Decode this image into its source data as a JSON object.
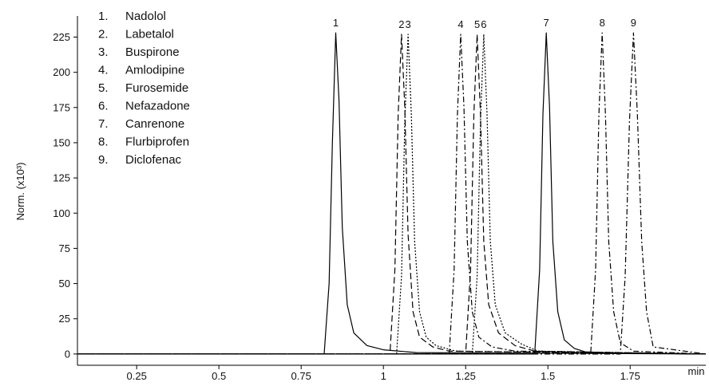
{
  "chart_data": {
    "type": "line",
    "title": "",
    "xlabel": "min",
    "ylabel": "Norm. (x10³)",
    "xlim": [
      0.07,
      1.98
    ],
    "ylim": [
      -8,
      240
    ],
    "x_ticks": [
      0.25,
      0.5,
      0.75,
      1,
      1.25,
      1.5,
      1.75
    ],
    "x_tick_labels": [
      "0.25",
      "0.5",
      "0.75",
      "1",
      "1.25",
      "1.5",
      "1.75"
    ],
    "y_ticks": [
      0,
      25,
      50,
      75,
      100,
      125,
      150,
      175,
      200,
      225
    ],
    "y_tick_labels": [
      "0",
      "25",
      "50",
      "75",
      "100",
      "125",
      "150",
      "175",
      "200",
      "225"
    ],
    "grid": false,
    "legend_position": "top-left",
    "legend": [
      {
        "num": "1.",
        "name": "Nadolol"
      },
      {
        "num": "2.",
        "name": "Labetalol"
      },
      {
        "num": "3.",
        "name": "Buspirone"
      },
      {
        "num": "4.",
        "name": "Amlodipine"
      },
      {
        "num": "5.",
        "name": "Furosemide"
      },
      {
        "num": "6.",
        "name": "Nefazadone"
      },
      {
        "num": "7.",
        "name": "Canrenone"
      },
      {
        "num": "8.",
        "name": "Flurbiprofen"
      },
      {
        "num": "9.",
        "name": "Diclofenac"
      }
    ],
    "series": [
      {
        "label": "1",
        "style": "solid",
        "x": [
          0.07,
          0.82,
          0.835,
          0.845,
          0.855,
          0.865,
          0.875,
          0.89,
          0.91,
          0.95,
          1.0,
          1.1,
          1.98
        ],
        "y": [
          0,
          0,
          50,
          150,
          228,
          180,
          90,
          35,
          15,
          6,
          3,
          1,
          0
        ]
      },
      {
        "label": "2",
        "style": "longdash",
        "x": [
          0.07,
          1.02,
          1.035,
          1.045,
          1.055,
          1.065,
          1.075,
          1.09,
          1.11,
          1.15,
          1.2,
          1.98
        ],
        "y": [
          0,
          0,
          60,
          170,
          227,
          175,
          85,
          30,
          12,
          5,
          2,
          0
        ]
      },
      {
        "label": "3",
        "style": "dotted",
        "x": [
          0.07,
          1.04,
          1.055,
          1.065,
          1.075,
          1.085,
          1.095,
          1.11,
          1.13,
          1.16,
          1.22,
          1.98
        ],
        "y": [
          0,
          0,
          55,
          165,
          227,
          170,
          80,
          30,
          12,
          6,
          2,
          0
        ]
      },
      {
        "label": "4",
        "style": "dashdot",
        "x": [
          0.07,
          1.2,
          1.215,
          1.225,
          1.235,
          1.245,
          1.255,
          1.27,
          1.29,
          1.33,
          1.4,
          1.98
        ],
        "y": [
          0,
          0,
          60,
          170,
          227,
          175,
          80,
          30,
          12,
          5,
          2,
          0
        ]
      },
      {
        "label": "5",
        "style": "longdash",
        "x": [
          0.07,
          1.25,
          1.265,
          1.275,
          1.285,
          1.295,
          1.305,
          1.32,
          1.35,
          1.4,
          1.46,
          1.98
        ],
        "y": [
          0,
          0,
          60,
          170,
          227,
          170,
          80,
          35,
          15,
          6,
          2,
          0
        ]
      },
      {
        "label": "6",
        "style": "dotted",
        "x": [
          0.07,
          1.27,
          1.285,
          1.295,
          1.305,
          1.315,
          1.325,
          1.34,
          1.37,
          1.42,
          1.47,
          1.98
        ],
        "y": [
          0,
          0,
          55,
          165,
          227,
          170,
          80,
          35,
          15,
          7,
          2,
          0
        ]
      },
      {
        "label": "7",
        "style": "solid",
        "x": [
          0.07,
          1.46,
          1.475,
          1.485,
          1.495,
          1.505,
          1.515,
          1.53,
          1.55,
          1.58,
          1.62,
          1.98
        ],
        "y": [
          0,
          0,
          60,
          170,
          228,
          175,
          80,
          30,
          10,
          4,
          1,
          0
        ]
      },
      {
        "label": "8",
        "style": "dashdot",
        "x": [
          0.07,
          1.63,
          1.645,
          1.655,
          1.665,
          1.675,
          1.685,
          1.7,
          1.72,
          1.76,
          1.98
        ],
        "y": [
          0,
          0,
          60,
          170,
          228,
          170,
          80,
          30,
          8,
          2,
          0
        ]
      },
      {
        "label": "9",
        "style": "dashdot",
        "x": [
          0.07,
          1.72,
          1.735,
          1.748,
          1.76,
          1.772,
          1.785,
          1.8,
          1.82,
          1.98
        ],
        "y": [
          0,
          0,
          55,
          165,
          228,
          170,
          80,
          30,
          5,
          0
        ]
      }
    ]
  }
}
